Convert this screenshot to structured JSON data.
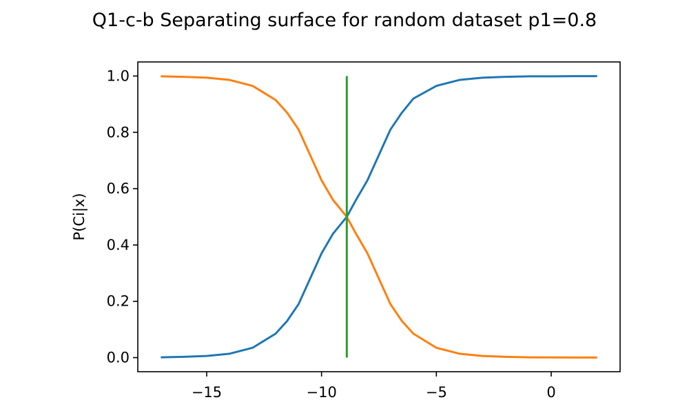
{
  "chart_data": {
    "type": "line",
    "title": "Q1-c-b Separating surface for random dataset p1=0.8",
    "xlabel": "",
    "ylabel": "P(Ci|x)",
    "xlim": [
      -18.0,
      3.0
    ],
    "ylim": [
      -0.05,
      1.05
    ],
    "xticks": [
      -15,
      -10,
      -5,
      0
    ],
    "xtick_labels": [
      "−15",
      "−10",
      "−5",
      "0"
    ],
    "yticks": [
      0.0,
      0.2,
      0.4,
      0.6,
      0.8,
      1.0
    ],
    "ytick_labels": [
      "0.0",
      "0.2",
      "0.4",
      "0.6",
      "0.8",
      "1.0"
    ],
    "grid": false,
    "legend": false,
    "series": [
      {
        "color": "#1f77b4",
        "x": [
          -17,
          -16,
          -15,
          -14,
          -13,
          -12,
          -11.5,
          -11,
          -10.5,
          -10,
          -9.5,
          -9,
          -8.9,
          -8.5,
          -8,
          -7.5,
          -7,
          -6.5,
          -6,
          -5,
          -4,
          -3,
          -2,
          -1,
          0,
          1,
          2
        ],
        "y": [
          0.001,
          0.003,
          0.006,
          0.014,
          0.035,
          0.085,
          0.13,
          0.19,
          0.28,
          0.37,
          0.44,
          0.49,
          0.5,
          0.56,
          0.63,
          0.72,
          0.81,
          0.87,
          0.92,
          0.965,
          0.986,
          0.994,
          0.997,
          0.999,
          0.999,
          0.9995,
          0.9997
        ]
      },
      {
        "color": "#ff7f0e",
        "x": [
          -17,
          -16,
          -15,
          -14,
          -13,
          -12,
          -11.5,
          -11,
          -10.5,
          -10,
          -9.5,
          -9,
          -8.9,
          -8.5,
          -8,
          -7.5,
          -7,
          -6.5,
          -6,
          -5,
          -4,
          -3,
          -2,
          -1,
          0,
          1,
          2
        ],
        "y": [
          0.999,
          0.997,
          0.994,
          0.986,
          0.965,
          0.915,
          0.87,
          0.81,
          0.72,
          0.63,
          0.56,
          0.51,
          0.5,
          0.44,
          0.37,
          0.28,
          0.19,
          0.13,
          0.085,
          0.035,
          0.014,
          0.006,
          0.003,
          0.001,
          0.0007,
          0.0005,
          0.0003
        ]
      },
      {
        "color": "#2ca02c",
        "x": [
          -8.9,
          -8.9
        ],
        "y": [
          0.0,
          1.0
        ]
      }
    ]
  }
}
